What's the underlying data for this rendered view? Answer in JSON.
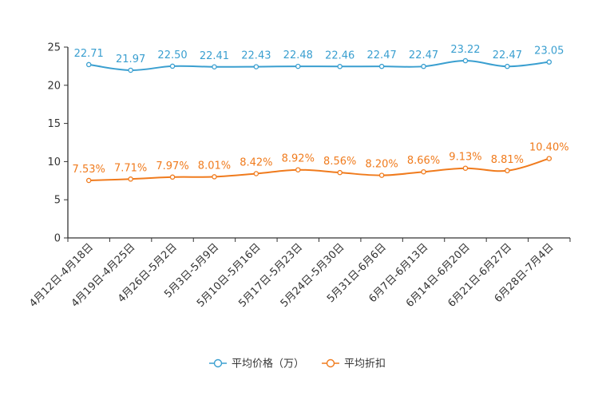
{
  "chart_data": {
    "type": "line",
    "title": "",
    "xlabel": "",
    "ylabel": "",
    "ylim": [
      0,
      25
    ],
    "yticks": [
      0,
      5,
      10,
      15,
      20,
      25
    ],
    "grid": false,
    "legend_position": "bottom-center",
    "categories": [
      "4月12日-4月18日",
      "4月19日-4月25日",
      "4月26日-5月2日",
      "5月3日-5月9日",
      "5月10日-5月16日",
      "5月17日-5月23日",
      "5月24日-5月30日",
      "5月31日-6月6日",
      "6月7日-6月13日",
      "6月14日-6月20日",
      "6月21日-6月27日",
      "6月28日-7月4日"
    ],
    "series": [
      {
        "name": "平均价格（万）",
        "color": "#3a9fd0",
        "values": [
          22.71,
          21.97,
          22.5,
          22.41,
          22.43,
          22.48,
          22.46,
          22.47,
          22.47,
          23.22,
          22.47,
          23.05
        ],
        "labels": [
          "22.71",
          "21.97",
          "22.50",
          "22.41",
          "22.43",
          "22.48",
          "22.46",
          "22.47",
          "22.47",
          "23.22",
          "22.47",
          "23.05"
        ]
      },
      {
        "name": "平均折扣",
        "color": "#f07b1d",
        "values": [
          7.53,
          7.71,
          7.97,
          8.01,
          8.42,
          8.92,
          8.56,
          8.2,
          8.66,
          9.13,
          8.81,
          10.4
        ],
        "labels": [
          "7.53%",
          "7.71%",
          "7.97%",
          "8.01%",
          "8.42%",
          "8.92%",
          "8.56%",
          "8.20%",
          "8.66%",
          "9.13%",
          "8.81%",
          "10.40%"
        ]
      }
    ]
  }
}
